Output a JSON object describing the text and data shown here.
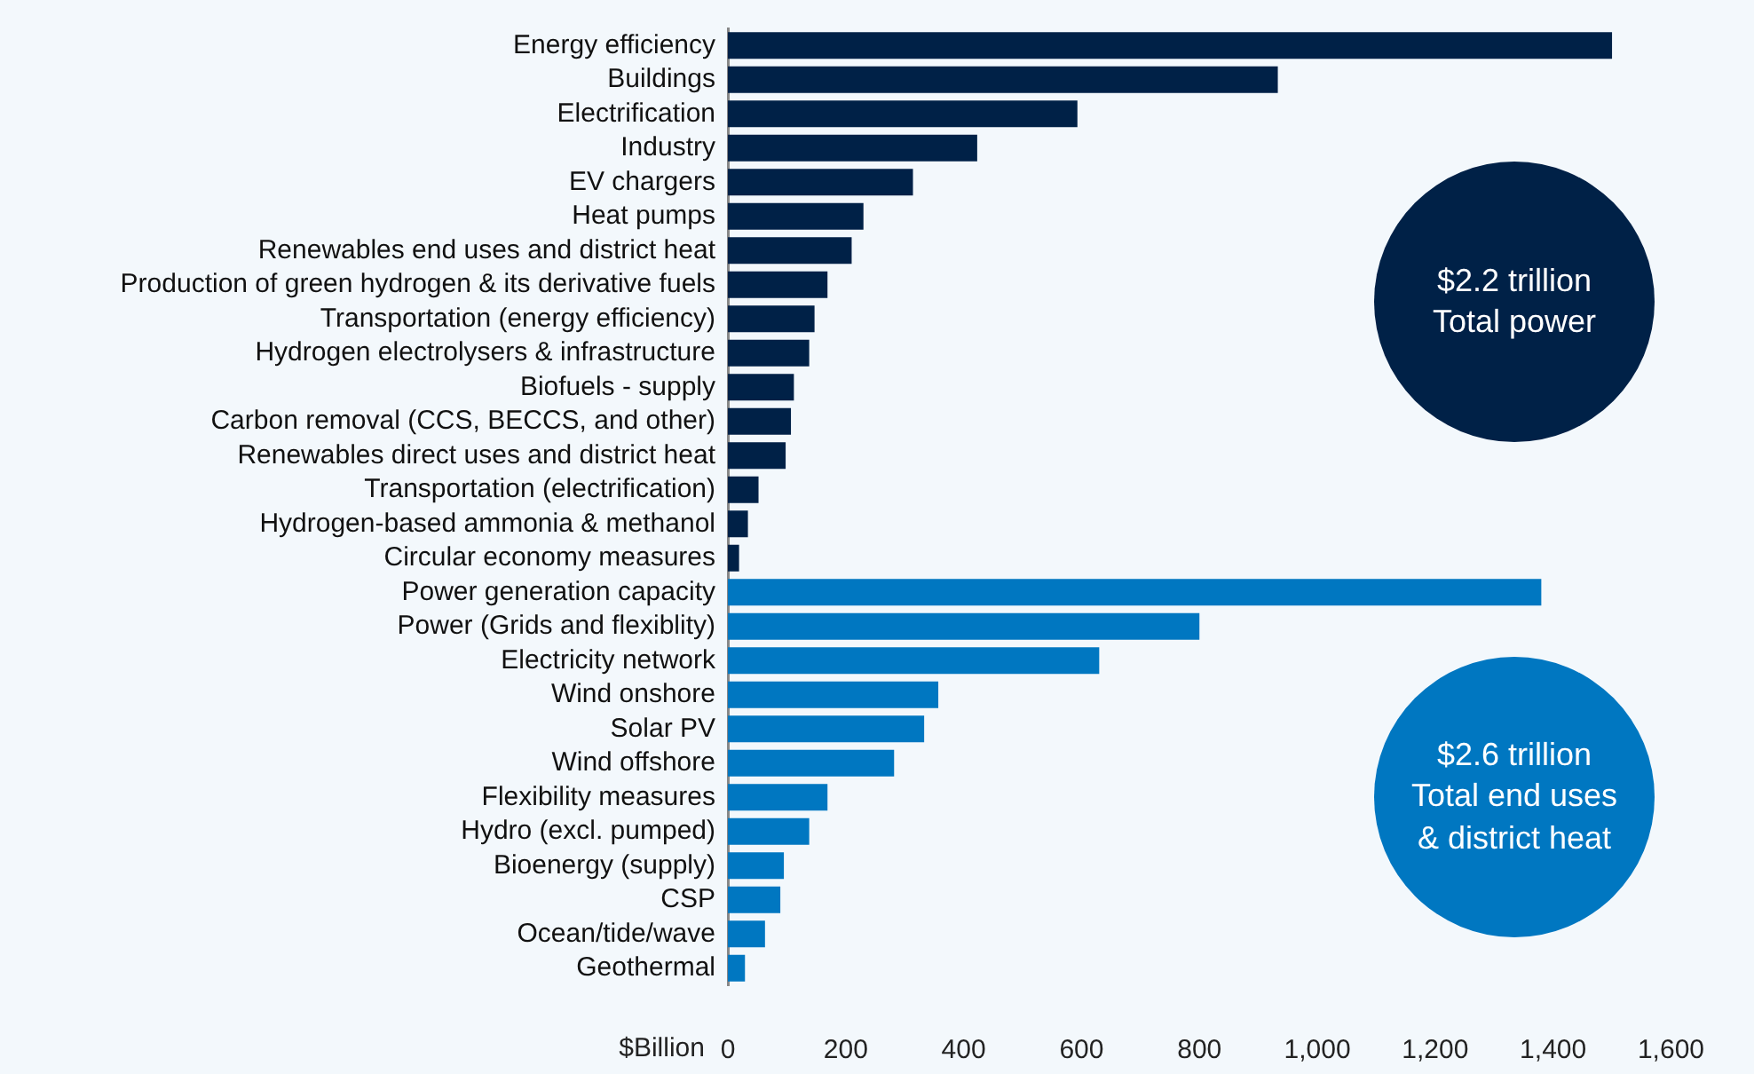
{
  "chart_data": {
    "type": "bar",
    "orientation": "horizontal",
    "xlabel": "$Billion",
    "categories": [
      "Energy efficiency",
      "Buildings",
      "Electrification",
      "Industry",
      "EV chargers",
      "Heat pumps",
      "Renewables end uses and district heat",
      "Production of green hydrogen & its derivative fuels",
      "Transportation (energy efficiency)",
      "Hydrogen electrolysers & infrastructure",
      "Biofuels - supply",
      "Carbon removal (CCS, BECCS, and other)",
      "Renewables direct uses and district heat",
      "Transportation (electrification)",
      "Hydrogen-based ammonia & methanol",
      "Circular economy measures",
      "Power generation capacity",
      "Power (Grids and flexiblity)",
      "Electricity network",
      "Wind onshore",
      "Solar PV",
      "Wind offshore",
      "Flexibility measures",
      "Hydro (excl. pumped)",
      "Bioenergy (supply)",
      "CSP",
      "Ocean/tide/wave",
      "Geothermal"
    ],
    "values": [
      1500,
      933,
      593,
      423,
      314,
      230,
      210,
      169,
      147,
      138,
      112,
      107,
      98,
      52,
      34,
      19,
      1380,
      800,
      630,
      357,
      333,
      282,
      169,
      138,
      95,
      89,
      63,
      29
    ],
    "colors": [
      "#002147",
      "#002147",
      "#002147",
      "#002147",
      "#002147",
      "#002147",
      "#002147",
      "#002147",
      "#002147",
      "#002147",
      "#002147",
      "#002147",
      "#002147",
      "#002147",
      "#002147",
      "#002147",
      "#0077c1",
      "#0077c1",
      "#0077c1",
      "#0077c1",
      "#0077c1",
      "#0077c1",
      "#0077c1",
      "#0077c1",
      "#0077c1",
      "#0077c1",
      "#0077c1",
      "#0077c1"
    ],
    "xlim": [
      0,
      1600
    ],
    "xticks": [
      0,
      200,
      400,
      600,
      800,
      {
        "value": 1000,
        "label": "1,000"
      },
      {
        "value": 1200,
        "label": "1,200"
      },
      {
        "value": 1400,
        "label": "1,400"
      },
      {
        "value": 1600,
        "label": "1,600"
      }
    ],
    "grid": false,
    "legend": false,
    "annotations": [
      "$2.2 trillion\nTotal power",
      "$2.6 trillion\nTotal end uses\n& district heat"
    ]
  }
}
